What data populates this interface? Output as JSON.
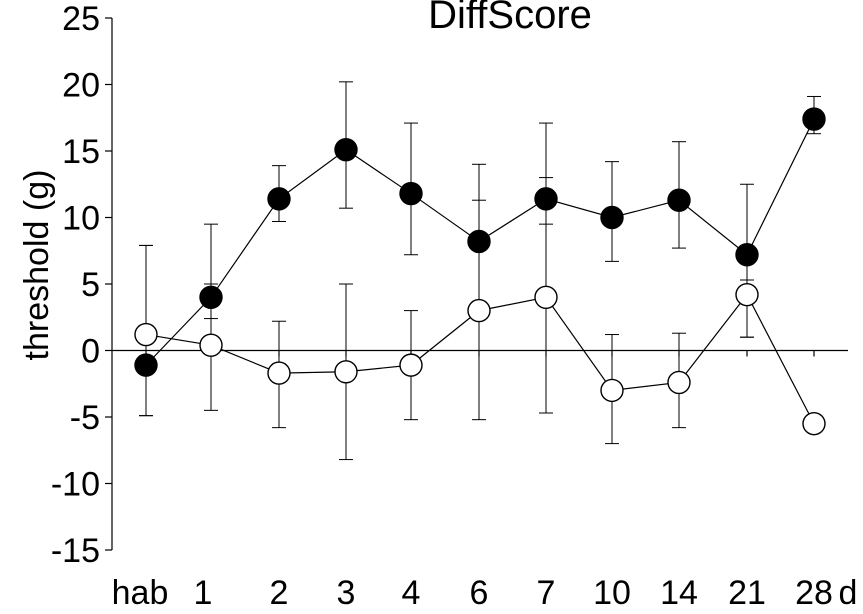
{
  "chart_data": {
    "type": "line",
    "title": "DiffScore",
    "ylabel": "threshold (g)",
    "xlabel": "",
    "x_unit_label": "d",
    "categories": [
      "hab",
      "1",
      "2",
      "3",
      "4",
      "6",
      "7",
      "10",
      "14",
      "21",
      "28"
    ],
    "y_ticks": [
      "25",
      "20",
      "15",
      "10",
      "5",
      "0",
      "-5",
      "-10",
      "-15"
    ],
    "ylim": [
      -15,
      25
    ],
    "grid": false,
    "legend": "none",
    "series": [
      {
        "marker": "filled-circle",
        "color": "#000000",
        "values": [
          -1.1,
          4.0,
          11.4,
          15.1,
          11.8,
          8.2,
          11.4,
          10.0,
          11.3,
          7.2,
          17.4
        ],
        "err_low": [
          3.8,
          1.6,
          1.7,
          4.4,
          4.6,
          5.5,
          1.9,
          3.3,
          3.6,
          6.2,
          1.1
        ],
        "err_high": [
          9.0,
          5.5,
          2.5,
          5.1,
          5.3,
          5.8,
          5.7,
          4.2,
          4.4,
          5.3,
          1.7
        ]
      },
      {
        "marker": "open-circle",
        "color": "#ffffff",
        "values": [
          1.2,
          0.4,
          -1.7,
          -1.6,
          -1.1,
          3.0,
          4.0,
          -3.0,
          -2.4,
          4.2,
          -5.5
        ],
        "err_low": [
          6.1,
          4.9,
          4.1,
          6.6,
          4.1,
          8.2,
          8.7,
          4.0,
          3.4,
          3.2,
          0
        ],
        "err_high": [
          6.7,
          4.6,
          3.9,
          6.6,
          4.1,
          8.3,
          9.0,
          4.2,
          3.7,
          1.1,
          0
        ]
      }
    ]
  }
}
